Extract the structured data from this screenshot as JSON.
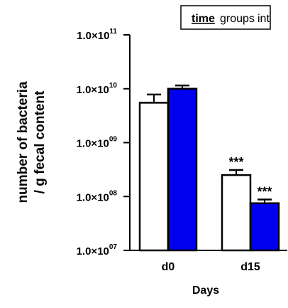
{
  "chart_data": {
    "type": "bar",
    "yscale": "log",
    "ylim": [
      10000000.0,
      100000000000.0
    ],
    "categories": [
      "d0",
      "d15"
    ],
    "xlabel": "Days",
    "ylabel_lines": [
      "number of bacteria",
      "/ g fecal content"
    ],
    "yticks": [
      {
        "value": 100000000000.0,
        "mant": "1.0×10",
        "exp": "11"
      },
      {
        "value": 10000000000.0,
        "mant": "1.0×10",
        "exp": "10"
      },
      {
        "value": 1000000000.0,
        "mant": "1.0×10",
        "exp": "09"
      },
      {
        "value": 100000000.0,
        "mant": "1.0×10",
        "exp": "08"
      },
      {
        "value": 10000000.0,
        "mant": "1.0×10",
        "exp": "07"
      }
    ],
    "series": [
      {
        "fill": "#ffffff",
        "values": [
          5500000000.0,
          250000000.0
        ],
        "err_upper": [
          7800000000.0,
          310000000.0
        ],
        "significance": [
          "",
          "***"
        ]
      },
      {
        "fill": "#0000ee",
        "values": [
          10000000000.0,
          75000000.0
        ],
        "err_upper": [
          11500000000.0,
          88000000.0
        ],
        "significance": [
          "",
          "***"
        ]
      }
    ],
    "legend": {
      "items": [
        "time",
        "groups",
        "int"
      ],
      "emphasized": "time",
      "placement": "top-right"
    }
  }
}
